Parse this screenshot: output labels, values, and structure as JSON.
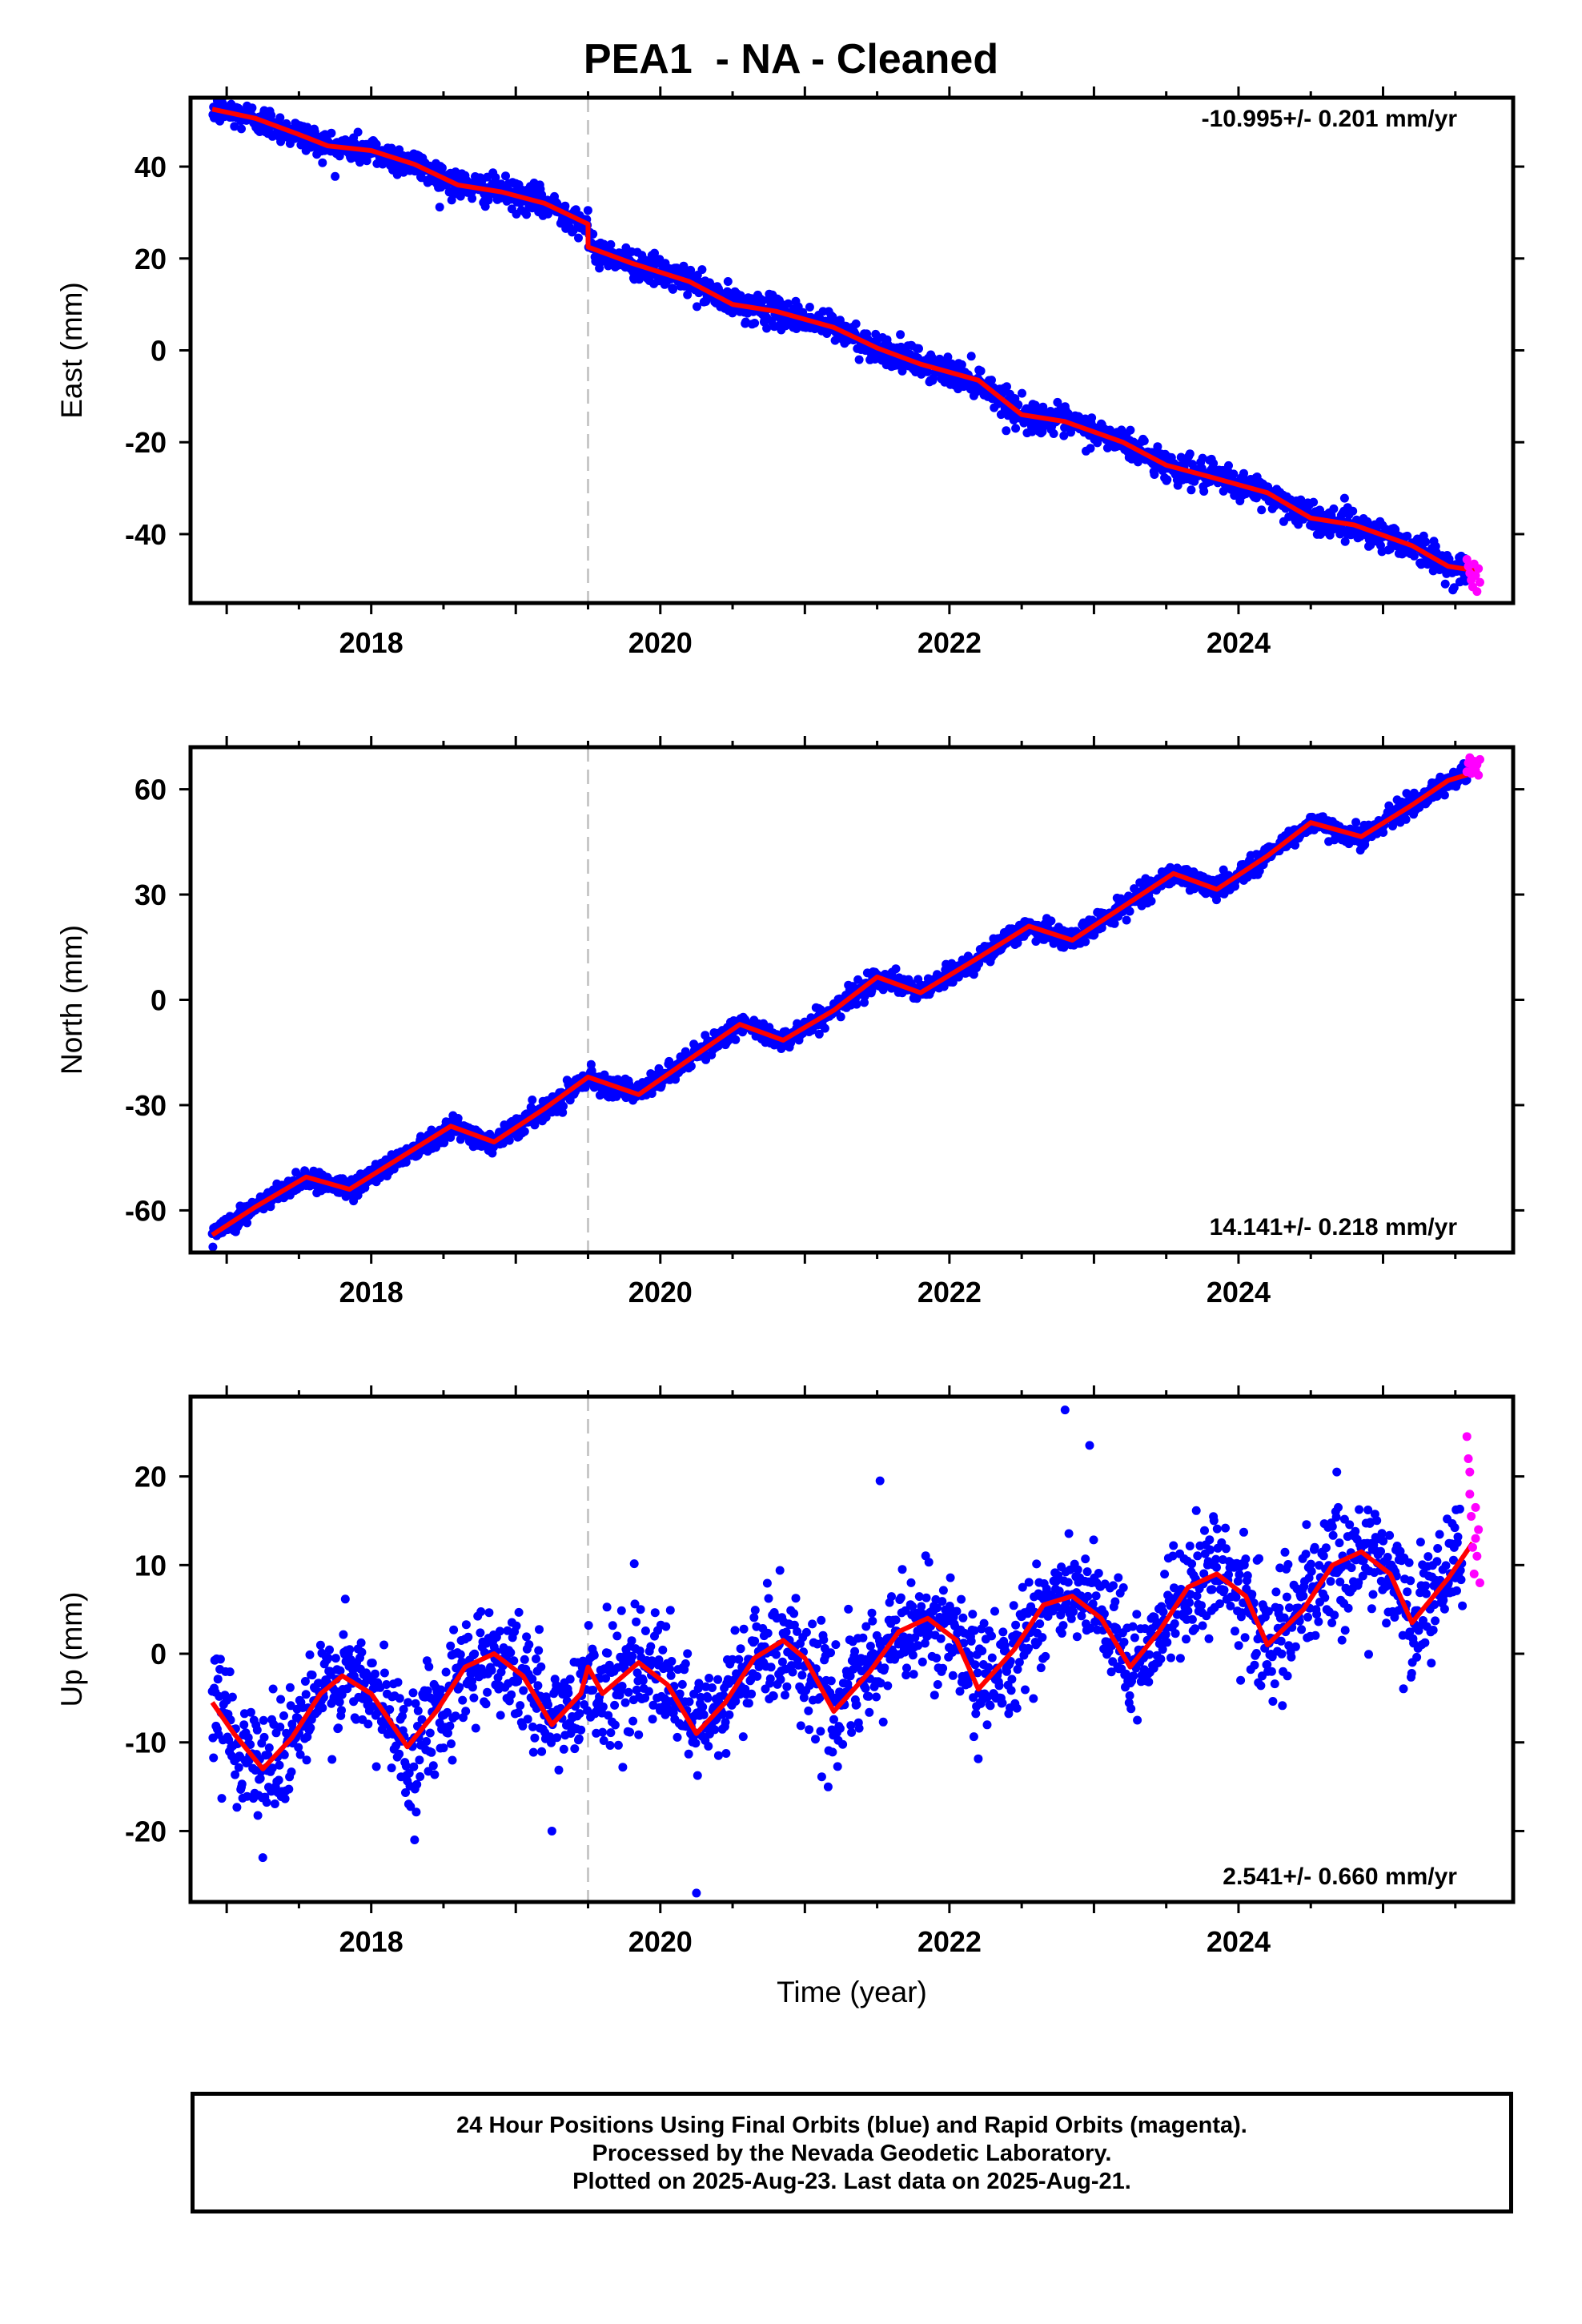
{
  "title": "PEA1  - NA - Cleaned",
  "colors": {
    "final_orbits": "#0000ff",
    "rapid_orbits": "#ff00ff",
    "model": "#ff0000",
    "equipment_change": "#c8c8c8"
  },
  "caption": {
    "line1": "24 Hour Positions Using Final Orbits (blue) and Rapid Orbits (magenta).",
    "line2": "Processed by the Nevada Geodetic Laboratory.",
    "line3": "Plotted on 2025-Aug-23. Last data on 2025-Aug-21."
  },
  "chart_data": [
    {
      "type": "scatter",
      "component": "east",
      "ylabel": "East (mm)",
      "xlabel": "",
      "xlim": [
        2016.75,
        2025.9
      ],
      "ylim": [
        -55,
        55
      ],
      "xticks": [
        2018,
        2020,
        2022,
        2024
      ],
      "yticks": [
        -40,
        -20,
        0,
        20,
        40
      ],
      "rate_label": "-10.995+/- 0.201 mm/yr",
      "rate_position": "top-right",
      "equipment_change_x": 2019.5,
      "offset_at_change": -4.0,
      "model": [
        [
          2016.9,
          52.5
        ],
        [
          2017.2,
          50.5
        ],
        [
          2017.5,
          47.0
        ],
        [
          2017.7,
          44.5
        ],
        [
          2018.0,
          43.5
        ],
        [
          2018.3,
          40.5
        ],
        [
          2018.6,
          36.0
        ],
        [
          2018.9,
          34.5
        ],
        [
          2019.2,
          32.0
        ],
        [
          2019.5,
          27.5
        ],
        [
          2019.5,
          22.5
        ],
        [
          2019.8,
          19.0
        ],
        [
          2020.2,
          15.0
        ],
        [
          2020.5,
          10.0
        ],
        [
          2020.8,
          8.5
        ],
        [
          2021.2,
          5.0
        ],
        [
          2021.5,
          0.5
        ],
        [
          2021.8,
          -3.0
        ],
        [
          2022.2,
          -6.5
        ],
        [
          2022.5,
          -14.0
        ],
        [
          2022.8,
          -15.5
        ],
        [
          2023.2,
          -20.0
        ],
        [
          2023.5,
          -25.0
        ],
        [
          2023.8,
          -27.5
        ],
        [
          2024.2,
          -31.0
        ],
        [
          2024.5,
          -36.5
        ],
        [
          2024.8,
          -38.0
        ],
        [
          2025.2,
          -42.5
        ],
        [
          2025.45,
          -47.0
        ],
        [
          2025.65,
          -48.0
        ]
      ],
      "scatter_noise_mm": 1.6,
      "rapid_orbit_points": [
        [
          2025.58,
          -45.5
        ],
        [
          2025.59,
          -47.0
        ],
        [
          2025.6,
          -48.5
        ],
        [
          2025.61,
          -50.0
        ],
        [
          2025.62,
          -51.5
        ],
        [
          2025.63,
          -46.5
        ],
        [
          2025.64,
          -49.0
        ],
        [
          2025.65,
          -52.5
        ],
        [
          2025.66,
          -47.5
        ],
        [
          2025.67,
          -50.5
        ]
      ]
    },
    {
      "type": "scatter",
      "component": "north",
      "ylabel": "North (mm)",
      "xlabel": "",
      "xlim": [
        2016.75,
        2025.9
      ],
      "ylim": [
        -72,
        72
      ],
      "xticks": [
        2018,
        2020,
        2022,
        2024
      ],
      "yticks": [
        -60,
        -30,
        0,
        30,
        60
      ],
      "rate_label": "14.141+/- 0.218 mm/yr",
      "rate_position": "bottom-right",
      "equipment_change_x": 2019.5,
      "model": [
        [
          2016.9,
          -67.0
        ],
        [
          2017.2,
          -59.0
        ],
        [
          2017.55,
          -50.5
        ],
        [
          2017.85,
          -54.0
        ],
        [
          2018.2,
          -45.0
        ],
        [
          2018.55,
          -36.0
        ],
        [
          2018.85,
          -40.5
        ],
        [
          2019.2,
          -31.0
        ],
        [
          2019.5,
          -22.0
        ],
        [
          2019.85,
          -27.0
        ],
        [
          2020.2,
          -17.0
        ],
        [
          2020.55,
          -7.0
        ],
        [
          2020.85,
          -11.5
        ],
        [
          2021.2,
          -3.0
        ],
        [
          2021.5,
          6.5
        ],
        [
          2021.8,
          2.0
        ],
        [
          2022.2,
          12.0
        ],
        [
          2022.55,
          21.0
        ],
        [
          2022.85,
          17.0
        ],
        [
          2023.2,
          26.5
        ],
        [
          2023.55,
          36.0
        ],
        [
          2023.85,
          31.5
        ],
        [
          2024.2,
          41.0
        ],
        [
          2024.5,
          50.5
        ],
        [
          2024.85,
          46.5
        ],
        [
          2025.2,
          55.5
        ],
        [
          2025.45,
          62.5
        ],
        [
          2025.65,
          65.0
        ]
      ],
      "scatter_noise_mm": 1.5,
      "rapid_orbit_points": [
        [
          2025.58,
          65.0
        ],
        [
          2025.59,
          67.5
        ],
        [
          2025.6,
          69.0
        ],
        [
          2025.61,
          64.5
        ],
        [
          2025.62,
          66.5
        ],
        [
          2025.63,
          68.0
        ],
        [
          2025.64,
          65.5
        ],
        [
          2025.65,
          67.0
        ],
        [
          2025.66,
          64.0
        ],
        [
          2025.67,
          68.5
        ]
      ]
    },
    {
      "type": "scatter",
      "component": "up",
      "ylabel": "Up (mm)",
      "xlabel": "Time (year)",
      "xlim": [
        2016.75,
        2025.9
      ],
      "ylim": [
        -28,
        29
      ],
      "xticks": [
        2018,
        2020,
        2022,
        2024
      ],
      "yticks": [
        -20,
        -10,
        0,
        10,
        20
      ],
      "rate_label": "2.541+/- 0.660 mm/yr",
      "rate_position": "bottom-right",
      "equipment_change_x": 2019.5,
      "model": [
        [
          2016.9,
          -5.5
        ],
        [
          2017.05,
          -9.0
        ],
        [
          2017.25,
          -13.0
        ],
        [
          2017.45,
          -9.5
        ],
        [
          2017.65,
          -4.5
        ],
        [
          2017.8,
          -2.5
        ],
        [
          2018.0,
          -4.5
        ],
        [
          2018.25,
          -10.5
        ],
        [
          2018.45,
          -6.5
        ],
        [
          2018.65,
          -1.5
        ],
        [
          2018.85,
          0.0
        ],
        [
          2019.05,
          -2.5
        ],
        [
          2019.25,
          -8.0
        ],
        [
          2019.45,
          -4.5
        ],
        [
          2019.5,
          -1.5
        ],
        [
          2019.6,
          -4.5
        ],
        [
          2019.85,
          -1.0
        ],
        [
          2020.05,
          -3.5
        ],
        [
          2020.25,
          -9.0
        ],
        [
          2020.45,
          -5.5
        ],
        [
          2020.65,
          -0.5
        ],
        [
          2020.85,
          1.5
        ],
        [
          2021.0,
          -0.5
        ],
        [
          2021.2,
          -6.5
        ],
        [
          2021.45,
          -2.0
        ],
        [
          2021.65,
          2.5
        ],
        [
          2021.85,
          4.0
        ],
        [
          2022.05,
          1.5
        ],
        [
          2022.2,
          -4.0
        ],
        [
          2022.45,
          0.5
        ],
        [
          2022.65,
          5.5
        ],
        [
          2022.85,
          6.5
        ],
        [
          2023.05,
          4.0
        ],
        [
          2023.25,
          -1.5
        ],
        [
          2023.45,
          2.5
        ],
        [
          2023.65,
          7.5
        ],
        [
          2023.85,
          9.0
        ],
        [
          2024.05,
          6.5
        ],
        [
          2024.2,
          1.0
        ],
        [
          2024.45,
          5.0
        ],
        [
          2024.65,
          10.0
        ],
        [
          2024.85,
          11.5
        ],
        [
          2025.05,
          9.0
        ],
        [
          2025.2,
          3.5
        ],
        [
          2025.45,
          8.5
        ],
        [
          2025.62,
          12.5
        ]
      ],
      "scatter_noise_mm": 3.2,
      "outliers": [
        [
          2022.8,
          27.5
        ],
        [
          2022.97,
          23.5
        ],
        [
          2020.25,
          -27.0
        ],
        [
          2021.52,
          19.5
        ],
        [
          2024.68,
          20.5
        ],
        [
          2018.3,
          -21.0
        ],
        [
          2019.25,
          -20.0
        ],
        [
          2017.25,
          -23.0
        ]
      ],
      "rapid_orbit_points": [
        [
          2025.58,
          24.5
        ],
        [
          2025.59,
          22.0
        ],
        [
          2025.6,
          18.0
        ],
        [
          2025.61,
          15.5
        ],
        [
          2025.62,
          12.0
        ],
        [
          2025.63,
          9.0
        ],
        [
          2025.64,
          16.5
        ],
        [
          2025.65,
          11.0
        ],
        [
          2025.66,
          14.0
        ],
        [
          2025.67,
          8.0
        ],
        [
          2025.6,
          20.5
        ],
        [
          2025.64,
          13.0
        ]
      ]
    }
  ]
}
